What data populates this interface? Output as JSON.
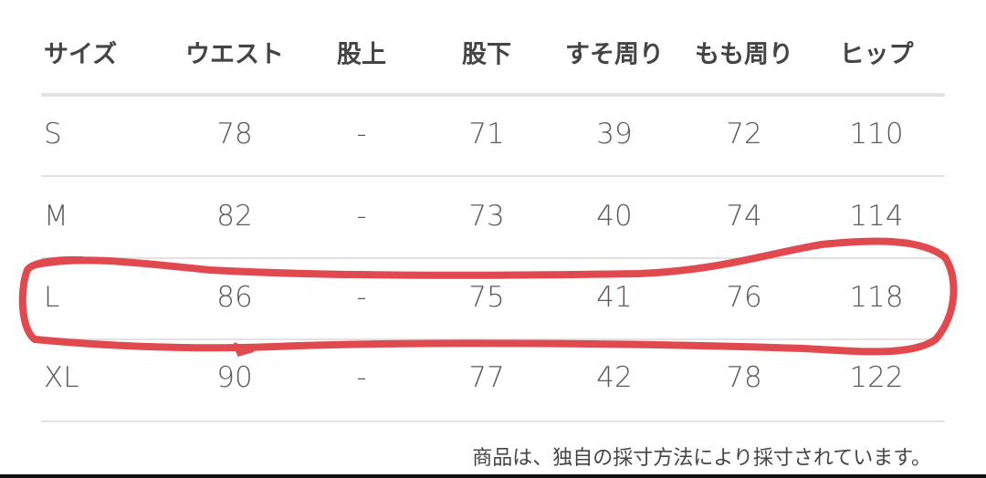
{
  "table": {
    "headers": [
      "サイズ",
      "ウエスト",
      "股上",
      "股下",
      "すそ周り",
      "もも周り",
      "ヒップ"
    ],
    "rows": [
      [
        "S",
        "78",
        "-",
        "71",
        "39",
        "72",
        "110"
      ],
      [
        "M",
        "82",
        "-",
        "73",
        "40",
        "74",
        "114"
      ],
      [
        "L",
        "86",
        "-",
        "75",
        "41",
        "76",
        "118"
      ],
      [
        "XL",
        "90",
        "-",
        "77",
        "42",
        "78",
        "122"
      ]
    ]
  },
  "highlighted_row": "L",
  "highlight_color": "#e04a4f",
  "footnote": "商品は、独自の採寸方法により採寸されています。"
}
